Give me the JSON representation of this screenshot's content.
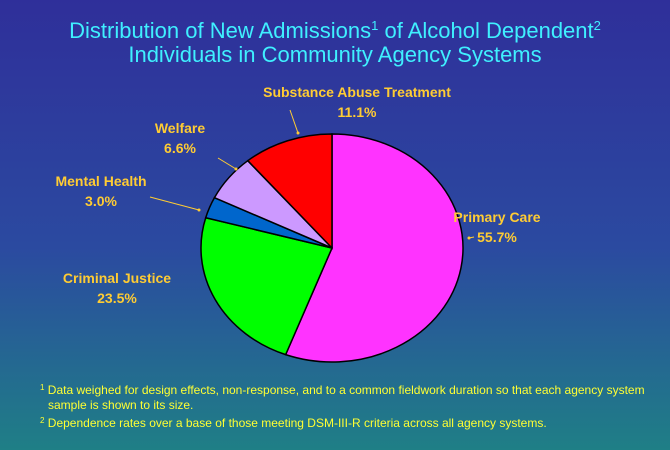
{
  "slide": {
    "title_line1_a": "Distribution of New Admissions",
    "title_sup1": "1",
    "title_line1_b": " of Alcohol Dependent",
    "title_sup2": "2",
    "title_line2": "Individuals in Community Agency Systems",
    "footnotes": [
      {
        "mark": "1",
        "text": " Data weighed for design effects, non-response, and to a common fieldwork duration so that each agency system sample is shown to its size."
      },
      {
        "mark": "2",
        "text": " Dependence rates over a base of  those meeting DSM-III-R criteria across all agency systems."
      }
    ]
  },
  "colors": {
    "title": "#3ff0ff",
    "labels": "#ffcc33",
    "footnotes": "#ffff33"
  },
  "chart_data": {
    "type": "pie",
    "slices": [
      {
        "name": "Primary Care",
        "value": 55.7,
        "value_label": "55.7%",
        "color": "#ff33ff"
      },
      {
        "name": "Criminal Justice",
        "value": 23.5,
        "value_label": "23.5%",
        "color": "#00ff00"
      },
      {
        "name": "Mental Health",
        "value": 3.0,
        "value_label": "3.0%",
        "color": "#0066cc"
      },
      {
        "name": "Welfare",
        "value": 6.6,
        "value_label": "6.6%",
        "color": "#cc99ff"
      },
      {
        "name": "Substance Abuse Treatment",
        "value": 11.1,
        "value_label": "11.1%",
        "color": "#ff0000"
      }
    ],
    "start": "12 o'clock",
    "direction": "clockwise"
  }
}
